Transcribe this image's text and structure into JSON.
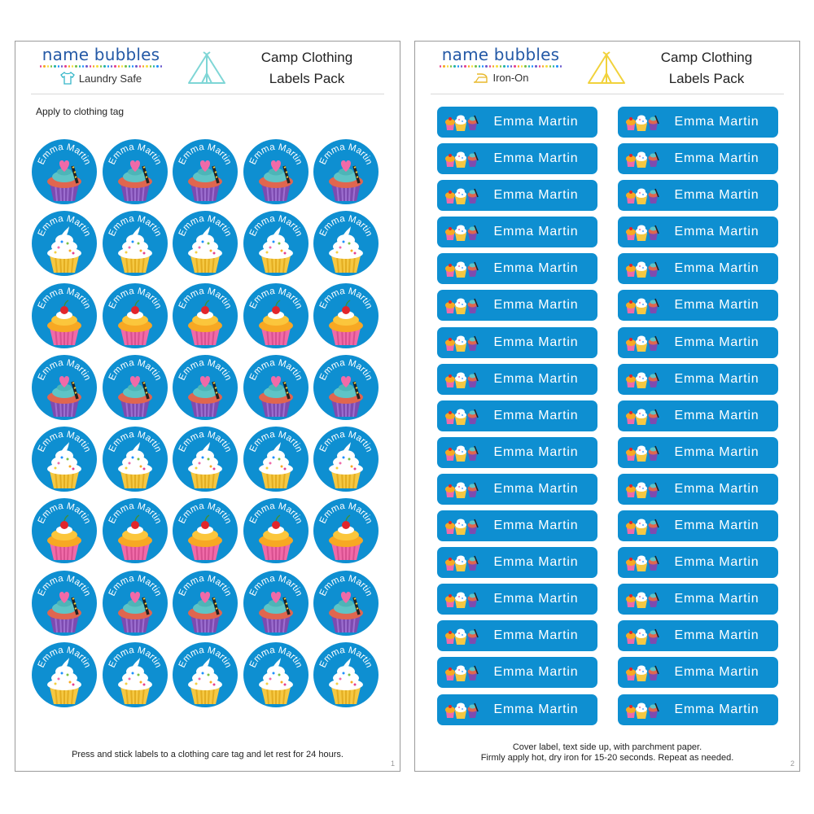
{
  "brand": {
    "name": "name bubbles",
    "dot_colors": [
      "#e83e8c",
      "#f7a823",
      "#f4e03b",
      "#7bc043",
      "#20b2aa",
      "#1e90ff",
      "#6a5acd",
      "#e83e8c",
      "#f7a823",
      "#f4e03b",
      "#7bc043",
      "#20b2aa",
      "#1e90ff",
      "#6a5acd",
      "#e83e8c",
      "#f7a823",
      "#f4e03b",
      "#7bc043",
      "#20b2aa",
      "#1e90ff",
      "#6a5acd",
      "#e83e8c",
      "#f7a823",
      "#f4e03b",
      "#7bc043",
      "#20b2aa",
      "#1e90ff",
      "#6a5acd",
      "#e83e8c",
      "#f7a823",
      "#f4e03b",
      "#7bc043",
      "#20b2aa",
      "#1e90ff",
      "#6a5acd"
    ]
  },
  "label_color": "#0e8fd1",
  "pages": [
    {
      "subtitle": "Laundry Safe",
      "subtitle_icon": "tshirt-icon",
      "tent_color": "#7fd6d6",
      "title_line1": "Camp Clothing",
      "title_line2": "Labels Pack",
      "apply_text": "Apply to clothing tag",
      "footer_line1": "Press and stick labels to a clothing care tag and let rest for 24 hours.",
      "footer_line2": "",
      "page_number": "1"
    },
    {
      "subtitle": "Iron-On",
      "subtitle_icon": "iron-icon",
      "tent_color": "#f1d23c",
      "title_line1": "Camp Clothing",
      "title_line2": "Labels Pack",
      "footer_line1": "Cover label, text side up, with parchment paper.",
      "footer_line2": "Firmly apply hot, dry iron for 15-20 seconds. Repeat as needed.",
      "page_number": "2"
    }
  ],
  "label_name": "Emma Martin",
  "circle_row_designs": [
    "heart-cupcake",
    "swirl-cupcake",
    "cherry-cupcake",
    "heart-cupcake",
    "swirl-cupcake",
    "cherry-cupcake",
    "heart-cupcake",
    "swirl-cupcake"
  ],
  "circle_columns": 5,
  "rect_rows": 17,
  "rect_columns": 2
}
